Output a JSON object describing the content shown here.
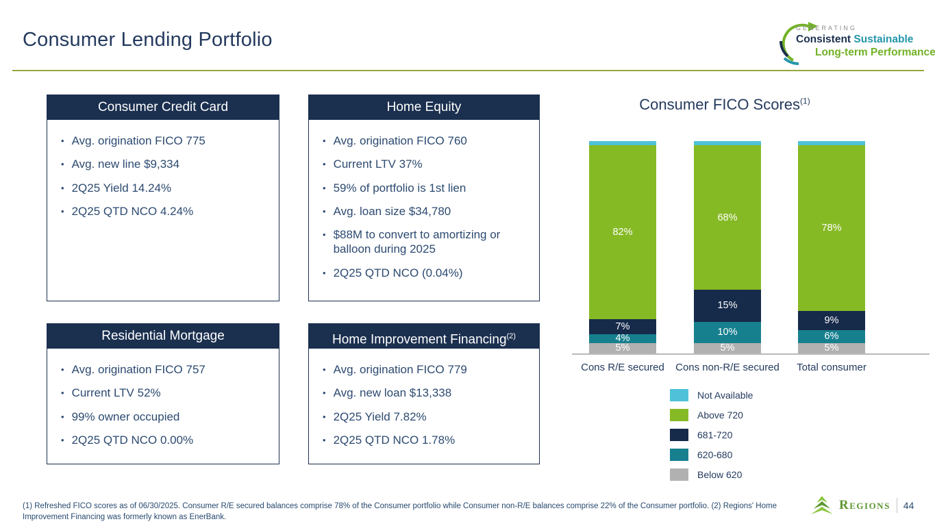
{
  "slide": {
    "title": "Consumer Lending Portfolio",
    "page_number": "44",
    "footnote": "(1) Refreshed FICO scores as of 06/30/2025. Consumer R/E secured balances comprise 78% of the Consumer portfolio while Consumer non-R/E balances comprise 22% of the Consumer portfolio. (2) Regions' Home Improvement Financing was formerly known as EnerBank."
  },
  "tagline": {
    "line1": "GENERATING",
    "line2_part1": "Consistent ",
    "line2_part2": "Sustainable",
    "line3": "Long-term Performance"
  },
  "brand": {
    "name": "Regions"
  },
  "boxes": [
    {
      "title": "Consumer Credit Card",
      "superscript": "",
      "bullets": [
        "Avg. origination FICO 775",
        "Avg. new line $9,334",
        "2Q25 Yield 14.24%",
        "2Q25 QTD NCO 4.24%"
      ]
    },
    {
      "title": "Home Equity",
      "superscript": "",
      "bullets": [
        "Avg. origination FICO 760",
        "Current LTV 37%",
        "59% of portfolio is 1st lien",
        "Avg. loan size $34,780",
        "$88M to convert to amortizing or balloon during 2025",
        "2Q25 QTD NCO (0.04%)"
      ]
    },
    {
      "title": "Residential Mortgage",
      "superscript": "",
      "bullets": [
        "Avg. origination FICO 757",
        "Current LTV 52%",
        "99% owner occupied",
        "2Q25 QTD NCO 0.00%"
      ]
    },
    {
      "title": "Home Improvement Financing",
      "superscript": "(2)",
      "bullets": [
        "Avg. origination FICO 779",
        "Avg. new loan $13,338",
        "2Q25 Yield 7.82%",
        "2Q25 QTD NCO 1.78%"
      ]
    }
  ],
  "chart_data": {
    "type": "bar",
    "stacked": true,
    "title": "Consumer FICO Scores",
    "title_superscript": "(1)",
    "categories": [
      "Cons R/E secured",
      "Cons non-R/E secured",
      "Total consumer"
    ],
    "series": [
      {
        "name": "Below 620",
        "color": "#b1b1b1",
        "values": [
          5,
          5,
          5
        ]
      },
      {
        "name": "620-680",
        "color": "#17808f",
        "values": [
          4,
          10,
          6
        ]
      },
      {
        "name": "681-720",
        "color": "#162a4a",
        "values": [
          7,
          15,
          9
        ]
      },
      {
        "name": "Above 720",
        "color": "#86ba25",
        "values": [
          82,
          68,
          78
        ]
      },
      {
        "name": "Not Available",
        "color": "#4fc2d9",
        "values": [
          2,
          2,
          2
        ]
      }
    ],
    "series_order": "bottom-to-top",
    "legend_order_top_to_bottom": [
      "Not Available",
      "Above 720",
      "681-720",
      "620-680",
      "Below 620"
    ],
    "value_suffix": "%",
    "ylim": [
      0,
      100
    ],
    "grid": false,
    "legend_position": "below-right"
  },
  "colors": {
    "header_navy": "#1b2f4f",
    "body_text_navy": "#2c4a70",
    "title_navy": "#243a5e",
    "rule_green": "#96a73d",
    "axis_gray": "#b9b9b9",
    "brand_green": "#5d9732",
    "brand_green_light": "#8dc63f",
    "tagline_teal": "#2496ac",
    "tagline_green": "#72b227"
  }
}
